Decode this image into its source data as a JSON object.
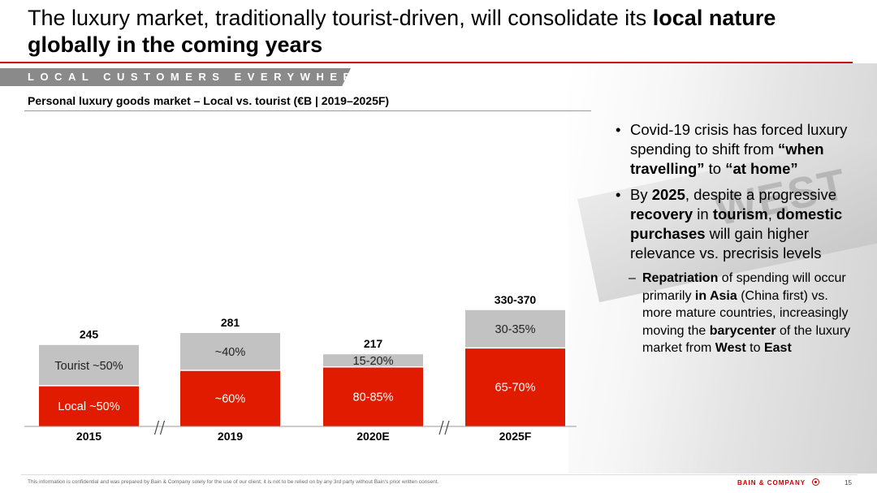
{
  "title": {
    "part1": "The luxury market, traditionally tourist-driven, will consolidate its ",
    "bold": "local nature globally in the coming years"
  },
  "section_band": "LOCAL CUSTOMERS EVERYWHERE",
  "chart_data": {
    "type": "bar",
    "stacked": true,
    "title": "Personal luxury goods market – Local vs. tourist (€B | 2019–2025F)",
    "categories": [
      "2015",
      "2019",
      "2020E",
      "2025F"
    ],
    "totals": [
      245,
      281,
      217,
      350
    ],
    "total_labels": [
      "245",
      "281",
      "217",
      "330-370"
    ],
    "local_share": [
      0.5,
      0.6,
      0.825,
      0.675
    ],
    "local_labels": [
      "Local ~50%",
      "~60%",
      "80-85%",
      "65-70%"
    ],
    "tourist_labels": [
      "Tourist ~50%",
      "~40%",
      "15-20%",
      "30-35%"
    ],
    "axis_breaks_between": [
      [
        0,
        1
      ],
      [
        2,
        3
      ]
    ],
    "ylim": [
      0,
      400
    ],
    "colors": {
      "local": "#e01b00",
      "tourist": "#c2c2c2"
    }
  },
  "bullets": [
    {
      "parts": [
        {
          "t": "Covid-19 crisis has forced luxury spending to shift from ",
          "b": false
        },
        {
          "t": "“when travelling”",
          "b": true
        },
        {
          "t": " to ",
          "b": false
        },
        {
          "t": "“at home”",
          "b": true
        }
      ]
    },
    {
      "parts": [
        {
          "t": "By ",
          "b": false
        },
        {
          "t": "2025",
          "b": true
        },
        {
          "t": ", despite a progressive ",
          "b": false
        },
        {
          "t": "recovery",
          "b": true
        },
        {
          "t": " in ",
          "b": false
        },
        {
          "t": "tourism",
          "b": true
        },
        {
          "t": ", ",
          "b": false
        },
        {
          "t": "domestic purchases",
          "b": true
        },
        {
          "t": " will gain higher relevance vs. precrisis levels",
          "b": false
        }
      ],
      "sub": [
        {
          "t": "Repatriation",
          "b": true
        },
        {
          "t": " of spending will occur primarily ",
          "b": false
        },
        {
          "t": "in Asia",
          "b": true
        },
        {
          "t": " (China first) vs. more mature countries, increasingly moving the ",
          "b": false
        },
        {
          "t": "barycenter",
          "b": true
        },
        {
          "t": " of the luxury market from ",
          "b": false
        },
        {
          "t": "West",
          "b": true
        },
        {
          "t": " to ",
          "b": false
        },
        {
          "t": "East",
          "b": true
        }
      ]
    }
  ],
  "bullet_glyph": "•",
  "sub_glyph": "–",
  "background_sign_text": "WEST",
  "footer": {
    "disclaimer": "This information is confidential and was prepared by Bain & Company solely for the use of our client; it is not to be relied on by any 3rd party without Bain's prior written consent.",
    "brand": "BAIN & COMPANY",
    "page": "15"
  }
}
